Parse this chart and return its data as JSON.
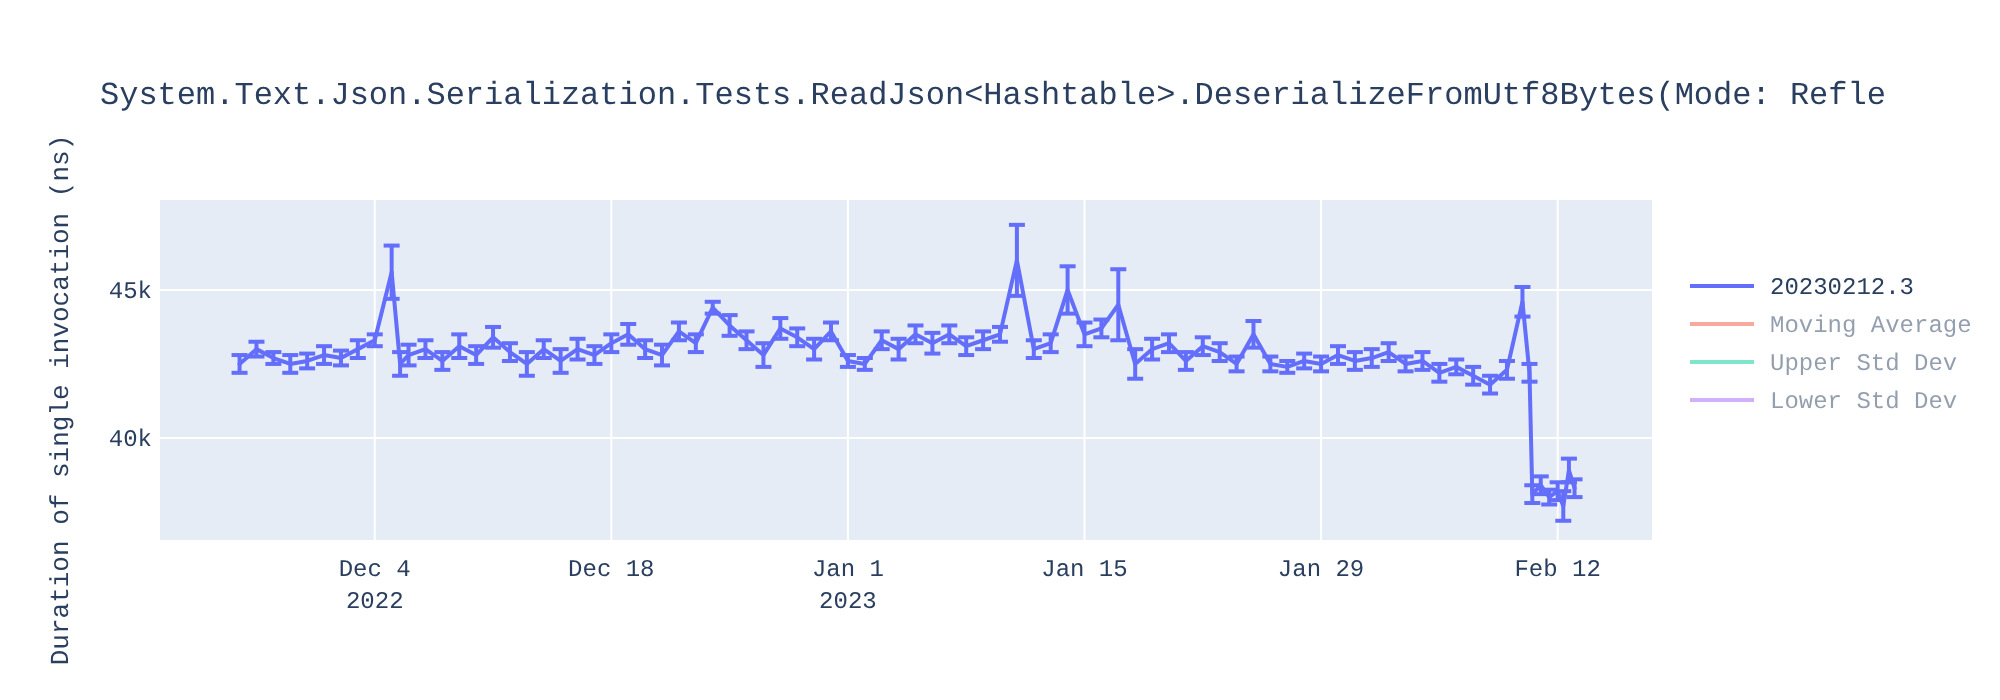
{
  "chart_data": {
    "type": "line",
    "title": "System.Text.Json.Serialization.Tests.ReadJson<Hashtable>.DeserializeFromUtf8Bytes(Mode: Refle",
    "ylabel": "Duration of single invocation (ns)",
    "xlim": [
      "2022-11-21T07:00",
      "2023-02-17T14:00"
    ],
    "xticks": [
      {
        "value": "2022-12-04",
        "label": "Dec 4\n2022"
      },
      {
        "value": "2022-12-18",
        "label": "Dec 18"
      },
      {
        "value": "2023-01-01",
        "label": "Jan 1\n2023"
      },
      {
        "value": "2023-01-15",
        "label": "Jan 15"
      },
      {
        "value": "2023-01-29",
        "label": "Jan 29"
      },
      {
        "value": "2023-02-12",
        "label": "Feb 12"
      }
    ],
    "ylim": [
      36550,
      48040
    ],
    "yticks": [
      {
        "value": 40000,
        "label": "40k"
      },
      {
        "value": 45000,
        "label": "45k"
      }
    ],
    "grid": true,
    "legend": "top right",
    "line_style": "solid",
    "x": [
      "2022-11-26",
      "2022-11-27",
      "2022-11-28",
      "2022-11-29",
      "2022-11-30",
      "2022-12-01",
      "2022-12-02",
      "2022-12-03",
      "2022-12-04",
      "2022-12-05",
      "2022-12-05T12:00",
      "2022-12-06",
      "2022-12-07",
      "2022-12-08",
      "2022-12-09",
      "2022-12-10",
      "2022-12-11",
      "2022-12-12",
      "2022-12-13",
      "2022-12-14",
      "2022-12-15",
      "2022-12-16",
      "2022-12-17",
      "2022-12-18",
      "2022-12-19",
      "2022-12-20",
      "2022-12-21",
      "2022-12-22",
      "2022-12-23",
      "2022-12-24",
      "2022-12-25",
      "2022-12-26",
      "2022-12-27",
      "2022-12-28",
      "2022-12-29",
      "2022-12-30",
      "2022-12-31",
      "2023-01-01",
      "2023-01-02",
      "2023-01-03",
      "2023-01-04",
      "2023-01-05",
      "2023-01-06",
      "2023-01-07",
      "2023-01-08",
      "2023-01-09",
      "2023-01-10",
      "2023-01-11",
      "2023-01-12",
      "2023-01-13",
      "2023-01-14",
      "2023-01-15",
      "2023-01-16",
      "2023-01-17",
      "2023-01-18",
      "2023-01-19",
      "2023-01-20",
      "2023-01-21",
      "2023-01-22",
      "2023-01-23",
      "2023-01-24",
      "2023-01-25",
      "2023-01-26",
      "2023-01-27",
      "2023-01-28",
      "2023-01-29",
      "2023-01-30",
      "2023-01-31",
      "2023-02-01",
      "2023-02-02",
      "2023-02-03",
      "2023-02-04",
      "2023-02-05",
      "2023-02-06",
      "2023-02-07",
      "2023-02-08",
      "2023-02-09",
      "2023-02-09T22:00",
      "2023-02-10T08:00",
      "2023-02-10T12:00",
      "2023-02-11",
      "2023-02-11T12:00",
      "2023-02-12",
      "2023-02-12T08:00",
      "2023-02-12T16:00",
      "2023-02-13"
    ],
    "series": [
      {
        "name": "20230212.3",
        "color": "#636efa",
        "values": [
          42500,
          43000,
          42700,
          42500,
          42600,
          42800,
          42700,
          43000,
          43300,
          45600,
          42500,
          42800,
          43000,
          42600,
          43100,
          42800,
          43400,
          42900,
          42500,
          43000,
          42600,
          43000,
          42800,
          43200,
          43500,
          43000,
          42800,
          43600,
          43200,
          44400,
          43800,
          43300,
          42800,
          43700,
          43400,
          43000,
          43600,
          42600,
          42500,
          43300,
          43000,
          43500,
          43200,
          43500,
          43100,
          43300,
          43500,
          46000,
          43000,
          43200,
          45000,
          43500,
          43700,
          44500,
          42500,
          43000,
          43200,
          42600,
          43100,
          42900,
          42500,
          43500,
          42500,
          42400,
          42600,
          42500,
          42800,
          42600,
          42700,
          42900,
          42500,
          42600,
          42200,
          42400,
          42100,
          41800,
          42300,
          44600,
          42200,
          38100,
          38400,
          38000,
          38200,
          37700,
          38900,
          38300
        ],
        "errors": [
          300,
          250,
          200,
          300,
          250,
          300,
          250,
          300,
          200,
          900,
          400,
          350,
          300,
          300,
          400,
          300,
          350,
          300,
          400,
          300,
          400,
          350,
          300,
          300,
          350,
          300,
          350,
          300,
          300,
          200,
          350,
          300,
          400,
          350,
          300,
          350,
          300,
          200,
          200,
          300,
          350,
          300,
          350,
          300,
          300,
          300,
          250,
          1200,
          300,
          300,
          800,
          400,
          300,
          1200,
          500,
          350,
          300,
          300,
          300,
          300,
          250,
          450,
          250,
          200,
          250,
          250,
          300,
          300,
          300,
          300,
          250,
          300,
          300,
          250,
          300,
          300,
          300,
          500,
          300,
          300,
          300,
          250,
          300,
          500,
          400,
          300
        ]
      },
      {
        "name": "Moving Average",
        "color": "#ef553b",
        "values": [
          null,
          null,
          null,
          null,
          null,
          null,
          null,
          null,
          null,
          null,
          null,
          null,
          null,
          null,
          null,
          null,
          null,
          null,
          null,
          null,
          null,
          null,
          null,
          null,
          null,
          null,
          null,
          null,
          null,
          null,
          null,
          null,
          null,
          null,
          null,
          null,
          null,
          null,
          null,
          null,
          null,
          null,
          null,
          null,
          null,
          null,
          null,
          null,
          null,
          null,
          null,
          null,
          null,
          null,
          null,
          null,
          null,
          null,
          null,
          null,
          null,
          null,
          null,
          null,
          null,
          null,
          null,
          null,
          null,
          null,
          null,
          null,
          null,
          null,
          null,
          null,
          null,
          null,
          null,
          null,
          null,
          null,
          null,
          null,
          null,
          null
        ]
      },
      {
        "name": "Upper Std Dev",
        "color": "#00cc96",
        "values": [
          null,
          null,
          null,
          null,
          null,
          null,
          null,
          null,
          null,
          null,
          null,
          null,
          null,
          null,
          null,
          null,
          null,
          null,
          null,
          null,
          null,
          null,
          null,
          null,
          null,
          null,
          null,
          null,
          null,
          null,
          null,
          null,
          null,
          null,
          null,
          null,
          null,
          null,
          null,
          null,
          null,
          null,
          null,
          null,
          null,
          null,
          null,
          null,
          null,
          null,
          null,
          null,
          null,
          null,
          null,
          null,
          null,
          null,
          null,
          null,
          null,
          null,
          null,
          null,
          null,
          null,
          null,
          null,
          null,
          null,
          null,
          null,
          null,
          null,
          null,
          null,
          null,
          null,
          null,
          null,
          null,
          null,
          null,
          null,
          null,
          null
        ]
      },
      {
        "name": "Lower Std Dev",
        "color": "#ab63fa",
        "values": [
          null,
          null,
          null,
          null,
          null,
          null,
          null,
          null,
          null,
          null,
          null,
          null,
          null,
          null,
          null,
          null,
          null,
          null,
          null,
          null,
          null,
          null,
          null,
          null,
          null,
          null,
          null,
          null,
          null,
          null,
          null,
          null,
          null,
          null,
          null,
          null,
          null,
          null,
          null,
          null,
          null,
          null,
          null,
          null,
          null,
          null,
          null,
          null,
          null,
          null,
          null,
          null,
          null,
          null,
          null,
          null,
          null,
          null,
          null,
          null,
          null,
          null,
          null,
          null,
          null,
          null,
          null,
          null,
          null,
          null,
          null,
          null,
          null,
          null,
          null,
          null,
          null,
          null,
          null,
          null,
          null,
          null,
          null,
          null,
          null,
          null
        ]
      }
    ]
  }
}
